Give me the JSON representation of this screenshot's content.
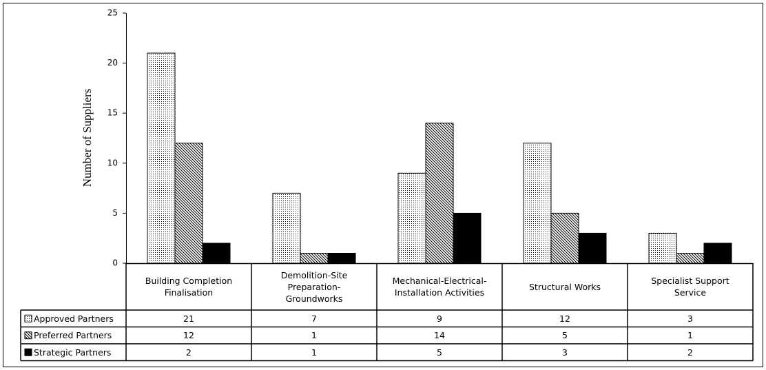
{
  "chart_data": {
    "type": "bar",
    "ylabel": "Number of Suppliers",
    "categories": [
      "Building Completion Finalisation",
      "Demolition-Site Preparation-Groundworks",
      "Mechanical-Electrical-Installation Activities",
      "Structural Works",
      "Specialist Support Service"
    ],
    "series": [
      {
        "name": "Approved Partners",
        "color": "#000000",
        "pattern": "dots",
        "values": [
          21,
          7,
          9,
          12,
          3
        ]
      },
      {
        "name": "Preferred Partners",
        "color": "#000000",
        "pattern": "hatch",
        "values": [
          12,
          1,
          14,
          5,
          1
        ]
      },
      {
        "name": "Strategic Partners",
        "color": "#000000",
        "pattern": "solid",
        "values": [
          2,
          1,
          5,
          3,
          2
        ]
      }
    ],
    "ylim": [
      0,
      25
    ],
    "yticks": [
      0,
      5,
      10,
      15,
      20,
      25
    ],
    "grid": false,
    "data_table": true
  }
}
